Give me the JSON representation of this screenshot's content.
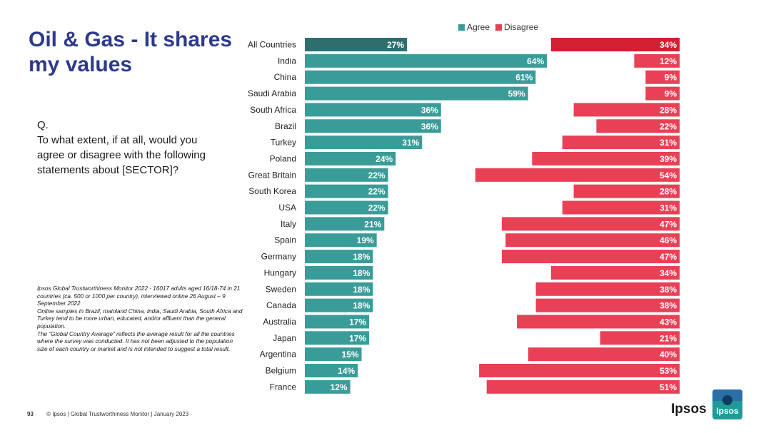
{
  "title": "Oil & Gas - It shares my values",
  "question": {
    "label": "Q.",
    "text": "To what extent, if at all, would you agree or disagree with the following statements about [SECTOR]?"
  },
  "notes": [
    "Ipsos Global Trustworthiness Monitor 2022 - 16017 adults aged 16/18-74 in 21 countries (ca. 500 or 1000 per country), interviewed online 26 August – 9 September 2022",
    "Online samples in Brazil, mainland China, India, Saudi Arabia, South Africa and Turkey tend to be more urban, educated, and/or affluent than the general population.",
    "The “Global Country Average” reflects the average result for all the countries where the survey was conducted. It has not been adjusted to the population size of each country or market and is not intended to suggest a total result."
  ],
  "footer": {
    "page_number": "93",
    "text": "© Ipsos | Global Trustworthiness Monitor | January 2023"
  },
  "logo": {
    "text": "Ipsos",
    "badge_text": "Ipsos"
  },
  "colors": {
    "agree": "#3a9c99",
    "agree_highlight": "#2e6e6f",
    "disagree": "#e84055",
    "disagree_highlight": "#d21f31",
    "title": "#2d3a8c"
  },
  "chart_data": {
    "type": "bar",
    "orientation": "horizontal",
    "layout": "diverging",
    "value_suffix": "%",
    "xlim": [
      0,
      100
    ],
    "legend": {
      "position": "top-right",
      "entries": [
        "Agree",
        "Disagree"
      ]
    },
    "categories": [
      "All Countries",
      "India",
      "China",
      "Saudi Arabia",
      "South Africa",
      "Brazil",
      "Turkey",
      "Poland",
      "Great Britain",
      "South Korea",
      "USA",
      "Italy",
      "Spain",
      "Germany",
      "Hungary",
      "Sweden",
      "Canada",
      "Australia",
      "Japan",
      "Argentina",
      "Belgium",
      "France"
    ],
    "series": [
      {
        "name": "Agree",
        "values": [
          27,
          64,
          61,
          59,
          36,
          36,
          31,
          24,
          22,
          22,
          22,
          21,
          19,
          18,
          18,
          18,
          18,
          17,
          17,
          15,
          14,
          12
        ]
      },
      {
        "name": "Disagree",
        "values": [
          34,
          12,
          9,
          9,
          28,
          22,
          31,
          39,
          54,
          28,
          31,
          47,
          46,
          47,
          34,
          38,
          38,
          43,
          21,
          40,
          53,
          51
        ]
      }
    ]
  }
}
